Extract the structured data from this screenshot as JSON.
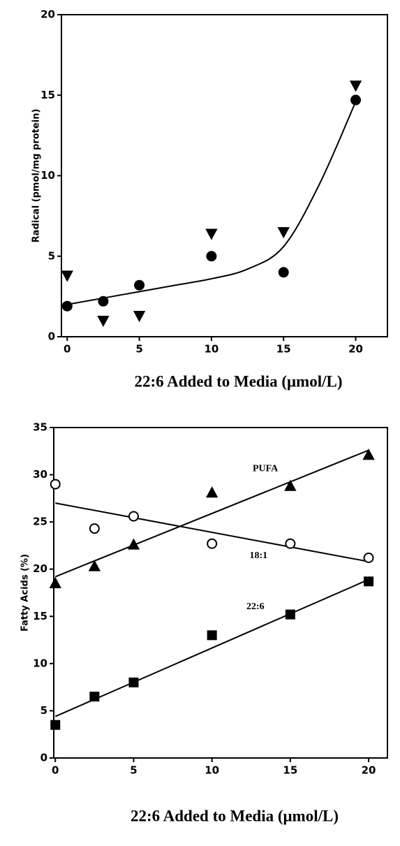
{
  "chart_data": [
    {
      "type": "scatter",
      "y_label": "Radical (pmol/mg protein)",
      "x_label": "22:6 Added to Media (μmol/L)",
      "xlim": [
        -0.4,
        22.2
      ],
      "ylim": [
        0,
        20
      ],
      "xticks": [
        0,
        5,
        10,
        15,
        20
      ],
      "yticks": [
        0,
        5,
        10,
        15,
        20
      ],
      "series": [
        {
          "marker": "circle",
          "filled": true,
          "color": "#000",
          "x": [
            0,
            2.5,
            5,
            10,
            15,
            20
          ],
          "values": [
            1.9,
            2.2,
            3.2,
            5,
            4,
            14.7
          ]
        },
        {
          "marker": "triangle-down",
          "filled": true,
          "color": "#000",
          "x": [
            0,
            2.5,
            5,
            10,
            15,
            20
          ],
          "values": [
            3.8,
            1,
            1.3,
            6.4,
            6.5,
            15.6
          ]
        }
      ],
      "lines": [
        {
          "color": "#000",
          "x": [
            0,
            2.5,
            5,
            7.5,
            10,
            12.5,
            15,
            17.5,
            20
          ],
          "values": [
            2,
            2.4,
            2.8,
            3.2,
            3.6,
            4.2,
            5.6,
            9.5,
            14.6
          ]
        }
      ]
    },
    {
      "type": "scatter",
      "y_label": "Fatty Acids (%)",
      "x_label": "22:6 Added to Media (μmol/L)",
      "xlim": [
        -0.1,
        21.2
      ],
      "ylim": [
        0,
        35
      ],
      "xticks": [
        0,
        5,
        10,
        15,
        20
      ],
      "yticks": [
        0,
        5,
        10,
        15,
        20,
        25,
        30,
        35
      ],
      "series": [
        {
          "name": "PUFA",
          "marker": "triangle-up",
          "filled": true,
          "color": "#000",
          "x": [
            0,
            2.5,
            5,
            10,
            15,
            20
          ],
          "values": [
            18.5,
            20.3,
            22.6,
            28.1,
            28.8,
            32.1
          ]
        },
        {
          "name": "18:1",
          "marker": "circle",
          "filled": false,
          "color": "#000",
          "x": [
            0,
            2.5,
            5,
            10,
            15,
            20
          ],
          "values": [
            29,
            24.3,
            25.6,
            22.7,
            22.7,
            21.2
          ]
        },
        {
          "name": "22:6",
          "marker": "square",
          "filled": true,
          "color": "#000",
          "x": [
            0,
            2.5,
            5,
            10,
            15,
            20
          ],
          "values": [
            3.5,
            6.5,
            8,
            13,
            15.2,
            18.7
          ]
        }
      ],
      "lines": [
        {
          "color": "#000",
          "x": [
            0,
            20
          ],
          "values": [
            19.2,
            32.6
          ]
        },
        {
          "color": "#000",
          "x": [
            0,
            20
          ],
          "values": [
            27,
            20.8
          ]
        },
        {
          "color": "#000",
          "x": [
            0,
            20
          ],
          "values": [
            4.4,
            18.9
          ]
        }
      ]
    }
  ]
}
